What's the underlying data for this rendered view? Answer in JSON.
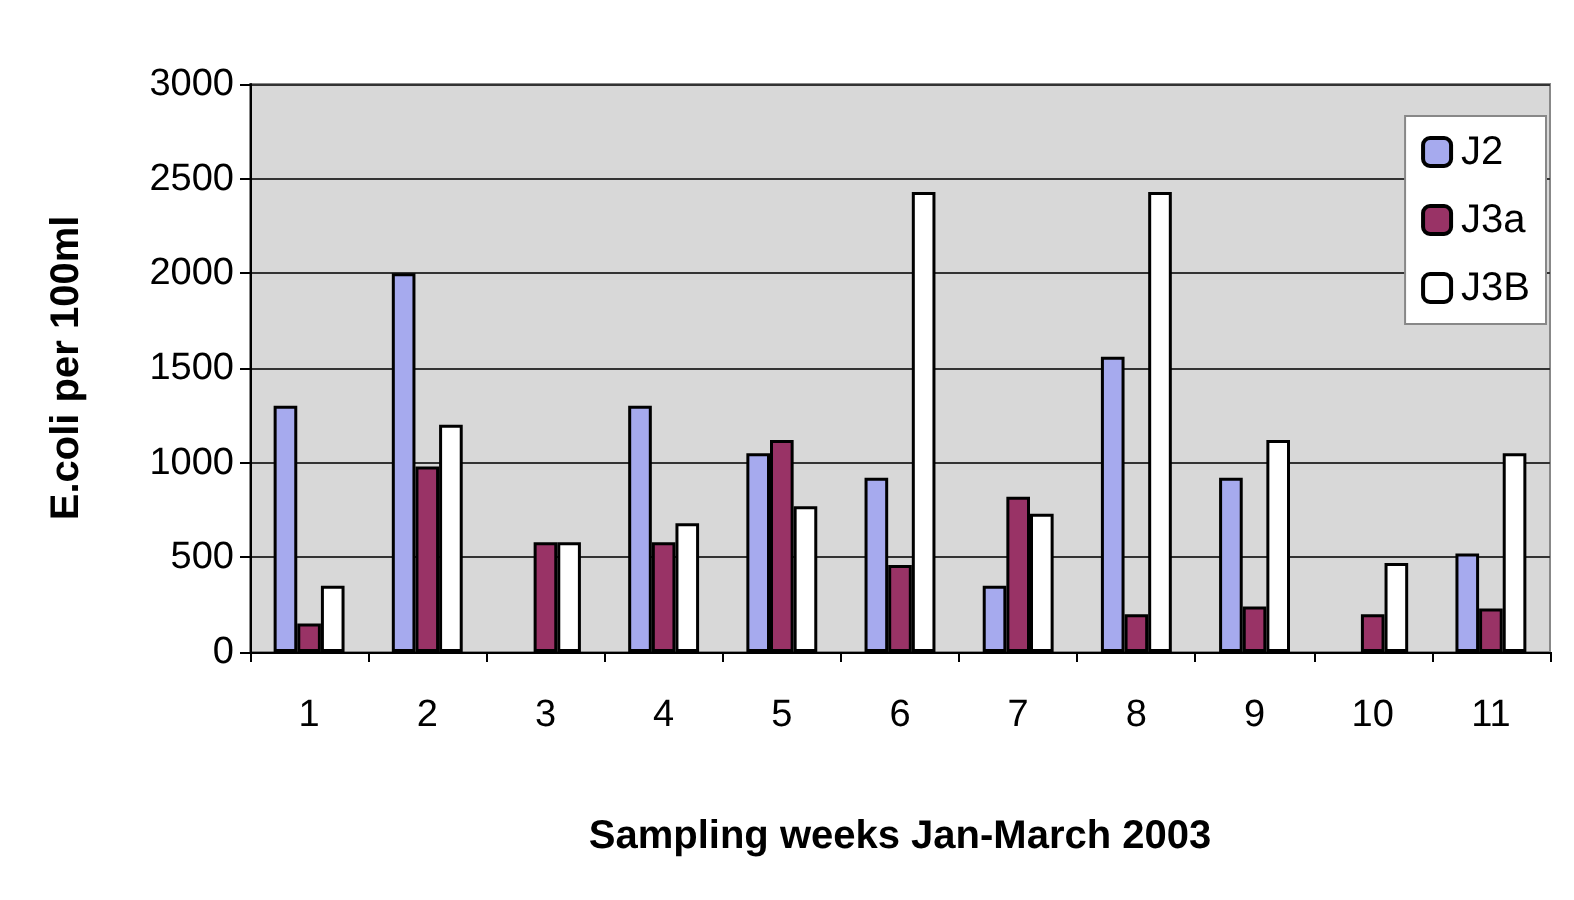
{
  "chart_data": {
    "type": "bar",
    "xlabel": "Sampling weeks Jan-March 2003",
    "ylabel": "E.coli per 100ml",
    "categories": [
      "1",
      "2",
      "3",
      "4",
      "5",
      "6",
      "7",
      "8",
      "9",
      "10",
      "11"
    ],
    "series": [
      {
        "name": "J2",
        "color": "#a6aaee",
        "values": [
          1300,
          2000,
          null,
          1300,
          1050,
          920,
          350,
          1560,
          920,
          null,
          520
        ]
      },
      {
        "name": "J3a",
        "color": "#993366",
        "values": [
          150,
          980,
          580,
          580,
          1120,
          460,
          820,
          200,
          240,
          200,
          230
        ]
      },
      {
        "name": "J3B",
        "color": "#ffffff",
        "values": [
          350,
          1200,
          580,
          680,
          770,
          2430,
          730,
          2430,
          1120,
          470,
          1050
        ]
      }
    ],
    "ylim": [
      0,
      3000
    ],
    "yticks": [
      0,
      500,
      1000,
      1500,
      2000,
      2500,
      3000
    ],
    "grid": "y",
    "legend": "top right"
  }
}
